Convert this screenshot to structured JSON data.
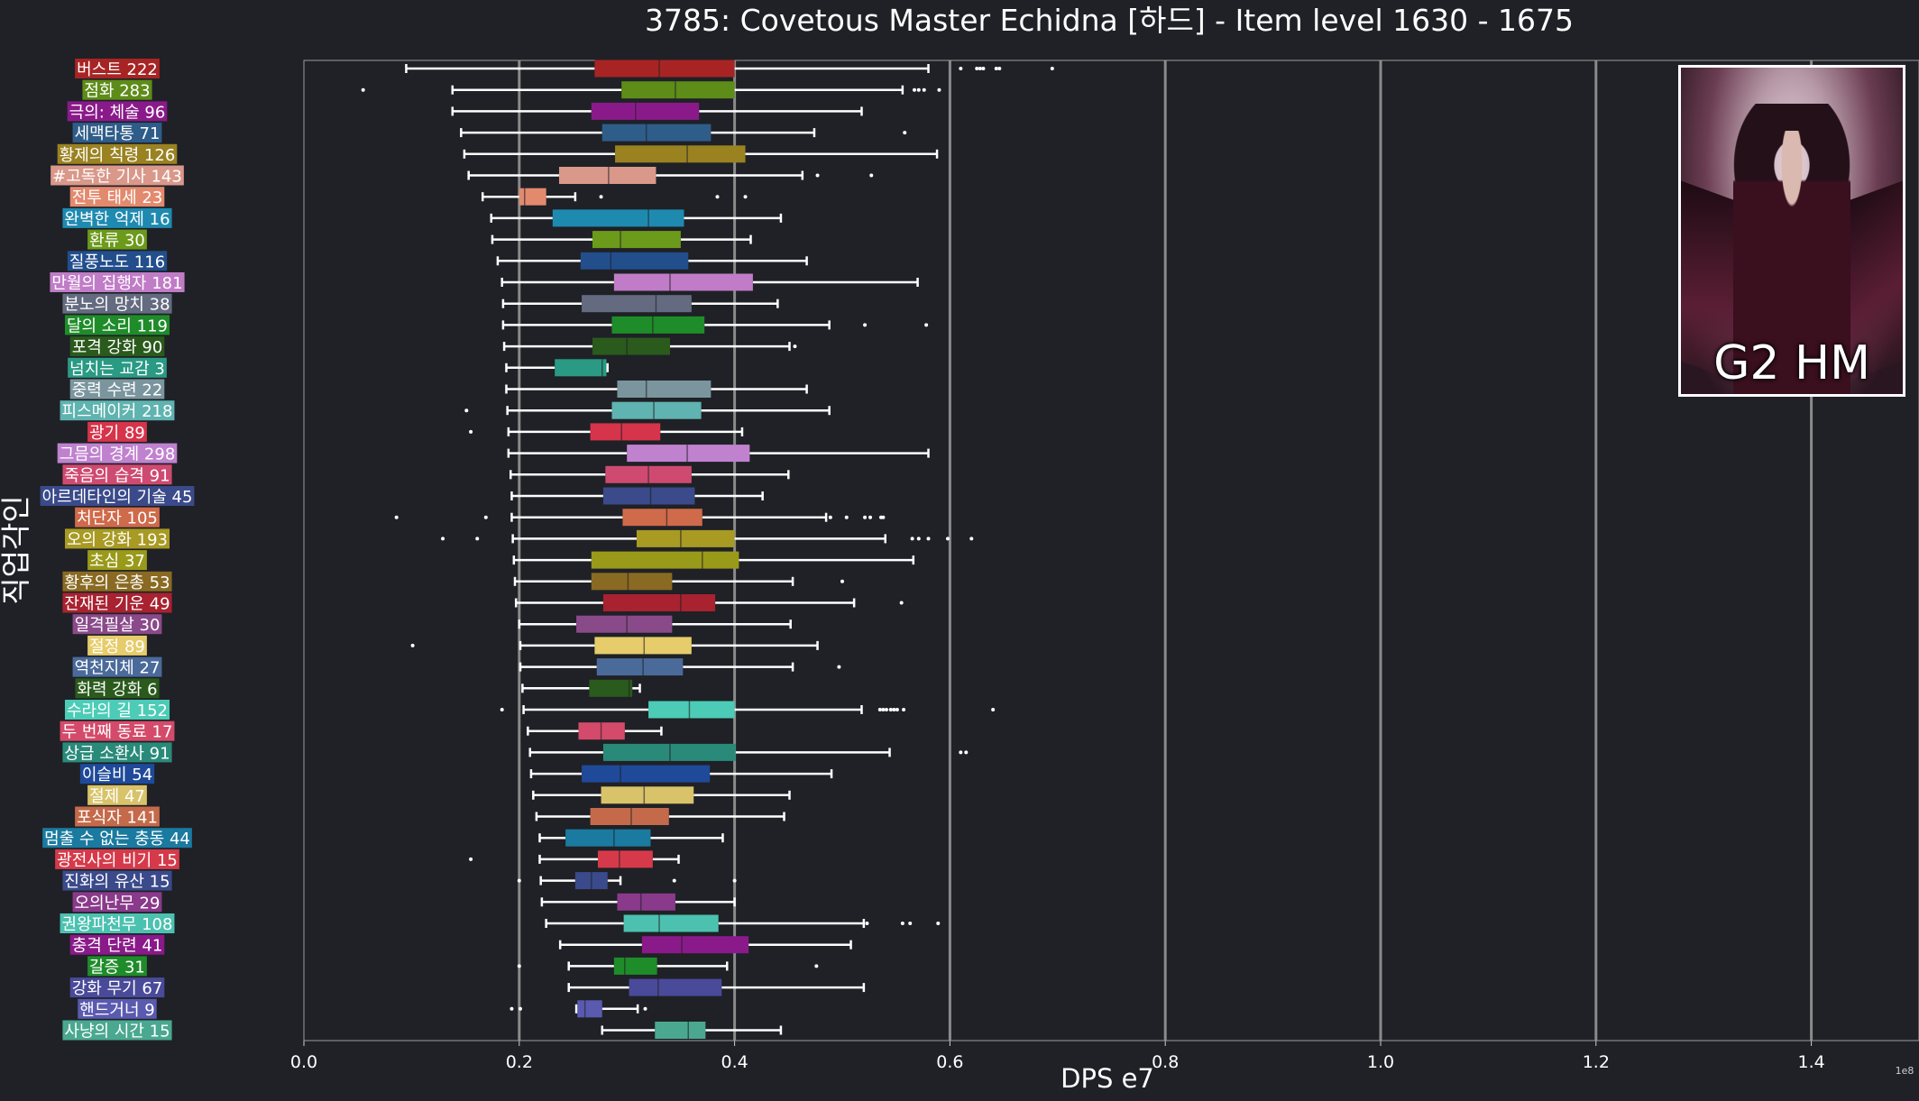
{
  "chart_data": {
    "type": "boxplot",
    "title": "3785: Covetous Master Echidna [하드] - Item level 1630 - 1675",
    "xlabel": "DPS e7",
    "ylabel": "직업각인",
    "xlim": [
      0,
      1.5
    ],
    "xticks": [
      "0.0",
      "0.2",
      "0.4",
      "0.6",
      "0.8",
      "1.0",
      "1.2",
      "1.4"
    ],
    "x_multiplier": "1e8",
    "orientation": "horizontal",
    "grid": "vertical major lines",
    "rows": [
      {
        "label": "버스트 222",
        "color": "#a82424",
        "whislo": 0.095,
        "q1": 0.27,
        "med": 0.33,
        "q3": 0.4,
        "whishi": 0.58,
        "fliers": [
          0.61,
          0.625,
          0.628,
          0.631,
          0.643,
          0.646,
          0.695
        ]
      },
      {
        "label": "점화 283",
        "color": "#5e8c18",
        "whislo": 0.138,
        "q1": 0.295,
        "med": 0.345,
        "q3": 0.4,
        "whishi": 0.556,
        "fliers": [
          0.055,
          0.567,
          0.571,
          0.576,
          0.59
        ]
      },
      {
        "label": "극의: 체술 96",
        "color": "#8a1a8a",
        "whislo": 0.138,
        "q1": 0.267,
        "med": 0.308,
        "q3": 0.367,
        "whishi": 0.518,
        "fliers": []
      },
      {
        "label": "세맥타통 71",
        "color": "#2f5d8a",
        "whislo": 0.146,
        "q1": 0.277,
        "med": 0.318,
        "q3": 0.378,
        "whishi": 0.474,
        "fliers": [
          0.558
        ]
      },
      {
        "label": "황제의 칙령 126",
        "color": "#9a8221",
        "whislo": 0.149,
        "q1": 0.289,
        "med": 0.356,
        "q3": 0.41,
        "whishi": 0.588,
        "fliers": []
      },
      {
        "label": "#고독한 기사 143",
        "color": "#d9988a",
        "whislo": 0.153,
        "q1": 0.237,
        "med": 0.283,
        "q3": 0.327,
        "whishi": 0.463,
        "fliers": [
          0.477,
          0.527
        ]
      },
      {
        "label": "전투 태세 23",
        "color": "#e38a6e",
        "whislo": 0.166,
        "q1": 0.2,
        "med": 0.205,
        "q3": 0.225,
        "whishi": 0.252,
        "fliers": [
          0.276,
          0.384,
          0.41
        ]
      },
      {
        "label": "완벽한 억제 16",
        "color": "#1f8ab0",
        "whislo": 0.174,
        "q1": 0.231,
        "med": 0.32,
        "q3": 0.353,
        "whishi": 0.443,
        "fliers": []
      },
      {
        "label": "환류 30",
        "color": "#6c9a1a",
        "whislo": 0.175,
        "q1": 0.268,
        "med": 0.294,
        "q3": 0.35,
        "whishi": 0.415,
        "fliers": []
      },
      {
        "label": "질풍노도 116",
        "color": "#224e8c",
        "whislo": 0.18,
        "q1": 0.257,
        "med": 0.285,
        "q3": 0.357,
        "whishi": 0.467,
        "fliers": []
      },
      {
        "label": "만월의 집행자 181",
        "color": "#c07cc7",
        "whislo": 0.184,
        "q1": 0.288,
        "med": 0.34,
        "q3": 0.417,
        "whishi": 0.57,
        "fliers": []
      },
      {
        "label": "분노의 망치 38",
        "color": "#646b80",
        "whislo": 0.185,
        "q1": 0.258,
        "med": 0.327,
        "q3": 0.36,
        "whishi": 0.44,
        "fliers": []
      },
      {
        "label": "달의 소리 119",
        "color": "#1f8c2a",
        "whislo": 0.185,
        "q1": 0.286,
        "med": 0.324,
        "q3": 0.372,
        "whishi": 0.488,
        "fliers": [
          0.521,
          0.578
        ]
      },
      {
        "label": "포격 강화 90",
        "color": "#2a5a1c",
        "whislo": 0.186,
        "q1": 0.268,
        "med": 0.3,
        "q3": 0.34,
        "whishi": 0.451,
        "fliers": [
          0.456
        ]
      },
      {
        "label": "넘치는 교감 3",
        "color": "#2a9a84",
        "whislo": 0.188,
        "q1": 0.233,
        "med": 0.277,
        "q3": 0.281,
        "whishi": 0.282,
        "fliers": []
      },
      {
        "label": "중력 수련 22",
        "color": "#7a959e",
        "whislo": 0.188,
        "q1": 0.291,
        "med": 0.318,
        "q3": 0.378,
        "whishi": 0.467,
        "fliers": []
      },
      {
        "label": "피스메이커 218",
        "color": "#5fb3b0",
        "whislo": 0.189,
        "q1": 0.286,
        "med": 0.325,
        "q3": 0.369,
        "whishi": 0.488,
        "fliers": [
          0.151
        ]
      },
      {
        "label": "광기 89",
        "color": "#d6344b",
        "whislo": 0.19,
        "q1": 0.266,
        "med": 0.295,
        "q3": 0.331,
        "whishi": 0.407,
        "fliers": [
          0.155
        ]
      },
      {
        "label": "그믐의 경계 298",
        "color": "#c082cf",
        "whislo": 0.19,
        "q1": 0.3,
        "med": 0.356,
        "q3": 0.414,
        "whishi": 0.58,
        "fliers": []
      },
      {
        "label": "죽음의 습격 91",
        "color": "#cf4a70",
        "whislo": 0.192,
        "q1": 0.28,
        "med": 0.32,
        "q3": 0.36,
        "whishi": 0.45,
        "fliers": []
      },
      {
        "label": "아르데타인의 기술 45",
        "color": "#3a4a8a",
        "whislo": 0.193,
        "q1": 0.278,
        "med": 0.322,
        "q3": 0.363,
        "whishi": 0.426,
        "fliers": []
      },
      {
        "label": "처단자 105",
        "color": "#cf6a4a",
        "whislo": 0.193,
        "q1": 0.296,
        "med": 0.337,
        "q3": 0.37,
        "whishi": 0.485,
        "fliers": [
          0.086,
          0.169,
          0.489,
          0.504,
          0.521,
          0.526,
          0.536,
          0.538
        ]
      },
      {
        "label": "오의 강화 193",
        "color": "#a89a22",
        "whislo": 0.194,
        "q1": 0.309,
        "med": 0.35,
        "q3": 0.4,
        "whishi": 0.54,
        "fliers": [
          0.129,
          0.161,
          0.565,
          0.571,
          0.58,
          0.598,
          0.62
        ]
      },
      {
        "label": "초심 37",
        "color": "#9a9a1a",
        "whislo": 0.195,
        "q1": 0.267,
        "med": 0.37,
        "q3": 0.404,
        "whishi": 0.566,
        "fliers": []
      },
      {
        "label": "황후의 은총 53",
        "color": "#8a6a22",
        "whislo": 0.196,
        "q1": 0.267,
        "med": 0.301,
        "q3": 0.342,
        "whishi": 0.454,
        "fliers": [
          0.5
        ]
      },
      {
        "label": "잔재된 기운 49",
        "color": "#a82230",
        "whislo": 0.197,
        "q1": 0.278,
        "med": 0.35,
        "q3": 0.382,
        "whishi": 0.511,
        "fliers": [
          0.555
        ]
      },
      {
        "label": "일격필살 30",
        "color": "#8a4a8a",
        "whislo": 0.2,
        "q1": 0.253,
        "med": 0.3,
        "q3": 0.342,
        "whishi": 0.452,
        "fliers": []
      },
      {
        "label": "절정 89",
        "color": "#e6cc6a",
        "whislo": 0.201,
        "q1": 0.27,
        "med": 0.316,
        "q3": 0.36,
        "whishi": 0.477,
        "fliers": [
          0.101
        ]
      },
      {
        "label": "역천지체 27",
        "color": "#4a6a9a",
        "whislo": 0.201,
        "q1": 0.272,
        "med": 0.315,
        "q3": 0.352,
        "whishi": 0.454,
        "fliers": [
          0.497
        ]
      },
      {
        "label": "화력 강화 6",
        "color": "#2a5a1c",
        "whislo": 0.203,
        "q1": 0.265,
        "med": 0.302,
        "q3": 0.305,
        "whishi": 0.312,
        "fliers": []
      },
      {
        "label": "수라의 길 152",
        "color": "#4cccb7",
        "whislo": 0.204,
        "q1": 0.32,
        "med": 0.358,
        "q3": 0.4,
        "whishi": 0.518,
        "fliers": [
          0.184,
          0.535,
          0.538,
          0.541,
          0.545,
          0.548,
          0.551,
          0.557,
          0.64
        ]
      },
      {
        "label": "두 번째 동료 17",
        "color": "#d44a6a",
        "whislo": 0.208,
        "q1": 0.255,
        "med": 0.276,
        "q3": 0.298,
        "whishi": 0.332,
        "fliers": []
      },
      {
        "label": "상급 소환사 91",
        "color": "#2a8a7a",
        "whislo": 0.21,
        "q1": 0.278,
        "med": 0.34,
        "q3": 0.401,
        "whishi": 0.544,
        "fliers": [
          0.61,
          0.615
        ]
      },
      {
        "label": "이슬비 54",
        "color": "#1f4a9a",
        "whislo": 0.211,
        "q1": 0.258,
        "med": 0.294,
        "q3": 0.377,
        "whishi": 0.49,
        "fliers": []
      },
      {
        "label": "절제 47",
        "color": "#d9c36a",
        "whislo": 0.213,
        "q1": 0.276,
        "med": 0.316,
        "q3": 0.362,
        "whishi": 0.451,
        "fliers": []
      },
      {
        "label": "포식자 141",
        "color": "#c46a4a",
        "whislo": 0.216,
        "q1": 0.266,
        "med": 0.304,
        "q3": 0.339,
        "whishi": 0.446,
        "fliers": []
      },
      {
        "label": "멈출 수 없는 충동 44",
        "color": "#1a7aa0",
        "whislo": 0.219,
        "q1": 0.243,
        "med": 0.288,
        "q3": 0.322,
        "whishi": 0.389,
        "fliers": []
      },
      {
        "label": "광전사의 비기 15",
        "color": "#d63a4a",
        "whislo": 0.219,
        "q1": 0.273,
        "med": 0.293,
        "q3": 0.324,
        "whishi": 0.348,
        "fliers": [
          0.155
        ]
      },
      {
        "label": "진화의 유산 15",
        "color": "#3a4a8a",
        "whislo": 0.22,
        "q1": 0.252,
        "med": 0.267,
        "q3": 0.282,
        "whishi": 0.294,
        "fliers": [
          0.2,
          0.344,
          0.4
        ]
      },
      {
        "label": "오의난무 29",
        "color": "#8a3a8a",
        "whislo": 0.221,
        "q1": 0.291,
        "med": 0.313,
        "q3": 0.345,
        "whishi": 0.4,
        "fliers": []
      },
      {
        "label": "권왕파천무 108",
        "color": "#4cc1b0",
        "whislo": 0.225,
        "q1": 0.297,
        "med": 0.33,
        "q3": 0.385,
        "whishi": 0.52,
        "fliers": [
          0.523,
          0.556,
          0.563,
          0.589
        ]
      },
      {
        "label": "충격 단련 41",
        "color": "#8a1a8a",
        "whislo": 0.238,
        "q1": 0.314,
        "med": 0.351,
        "q3": 0.413,
        "whishi": 0.508,
        "fliers": []
      },
      {
        "label": "갈증 31",
        "color": "#1f8c2a",
        "whislo": 0.246,
        "q1": 0.288,
        "med": 0.298,
        "q3": 0.328,
        "whishi": 0.393,
        "fliers": [
          0.2,
          0.476
        ]
      },
      {
        "label": "강화 무기 67",
        "color": "#4a4a9a",
        "whislo": 0.246,
        "q1": 0.302,
        "med": 0.329,
        "q3": 0.388,
        "whishi": 0.52,
        "fliers": []
      },
      {
        "label": "핸드거너 9",
        "color": "#5a5ab0",
        "whislo": 0.253,
        "q1": 0.254,
        "med": 0.261,
        "q3": 0.277,
        "whishi": 0.31,
        "fliers": [
          0.193,
          0.201,
          0.317
        ]
      },
      {
        "label": "사냥의 시간 15",
        "color": "#4aa890",
        "whislo": 0.277,
        "q1": 0.326,
        "med": 0.357,
        "q3": 0.373,
        "whishi": 0.443,
        "fliers": []
      }
    ]
  },
  "banner": {
    "caption": "G2 HM"
  }
}
